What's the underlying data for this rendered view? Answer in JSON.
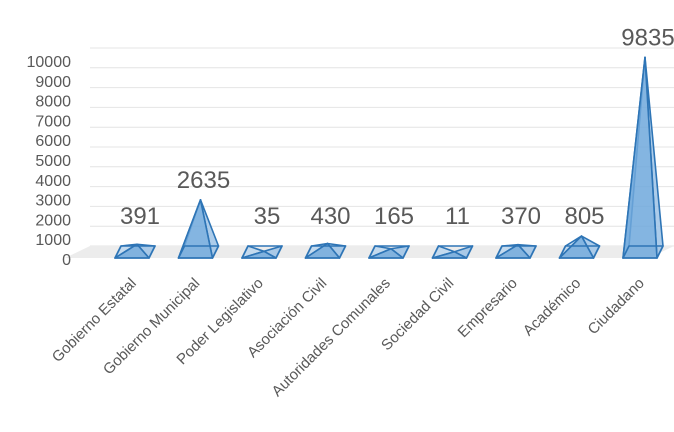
{
  "chart_data": {
    "type": "bar",
    "style": "3d-pyramid",
    "categories": [
      "Gobierno Estatal",
      "Gobierno Municipal",
      "Poder Legislativo",
      "Asociación Civil",
      "Autoridades Comunales",
      "Sociedad Civil",
      "Empresario",
      "Académico",
      "Ciudadano"
    ],
    "values": [
      391,
      2635,
      35,
      430,
      165,
      11,
      370,
      805,
      9835
    ],
    "data_labels": [
      "391",
      "2635",
      "35",
      "430",
      "165",
      "11",
      "370",
      "805",
      "9835"
    ],
    "y_ticks": [
      "0",
      "1000",
      "2000",
      "3000",
      "4000",
      "5000",
      "6000",
      "7000",
      "8000",
      "9000",
      "10000"
    ],
    "ylim": [
      0,
      10000
    ],
    "grid": true,
    "legend": "none",
    "colors": {
      "fill_light": "#bdd7ee",
      "fill_mid": "#9dc3e6",
      "fill_dark": "#6fa8dc",
      "stroke": "#2e75b6",
      "grid": "#e4e4e4",
      "floor": "#ececec",
      "text": "#595959"
    }
  }
}
